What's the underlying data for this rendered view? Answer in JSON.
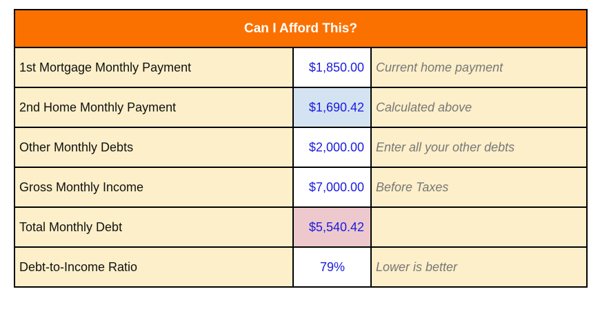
{
  "header": {
    "title": "Can I Afford This?"
  },
  "colors": {
    "header_bg": "#FB7100",
    "header_text": "#FFFFFF",
    "cell_bg": "#FCEFC9",
    "value_text": "#1A1ADF",
    "note_text": "#777777",
    "label_text": "#111111",
    "border": "#000000",
    "highlight_blue": "#D3E3F1",
    "highlight_pink": "#EDC9CD",
    "value_bg_default": "#FFFFFF"
  },
  "rows": [
    {
      "label": "1st Mortgage Monthly Payment",
      "value": "$1,850.00",
      "note": "Current home payment",
      "value_bg": "#FFFFFF"
    },
    {
      "label": "2nd Home Monthly Payment",
      "value": "$1,690.42",
      "note": "Calculated above",
      "value_bg": "#D3E3F1"
    },
    {
      "label": "Other Monthly Debts",
      "value": "$2,000.00",
      "note": "Enter all your other debts",
      "value_bg": "#FFFFFF"
    },
    {
      "label": "Gross Monthly Income",
      "value": "$7,000.00",
      "note": "Before Taxes",
      "value_bg": "#FFFFFF"
    },
    {
      "label": "Total Monthly Debt",
      "value": "$5,540.42",
      "note": "",
      "value_bg": "#EDC9CD"
    },
    {
      "label": "Debt-to-Income Ratio",
      "value": "79%",
      "note": "Lower is better",
      "value_bg": "#FFFFFF"
    }
  ]
}
